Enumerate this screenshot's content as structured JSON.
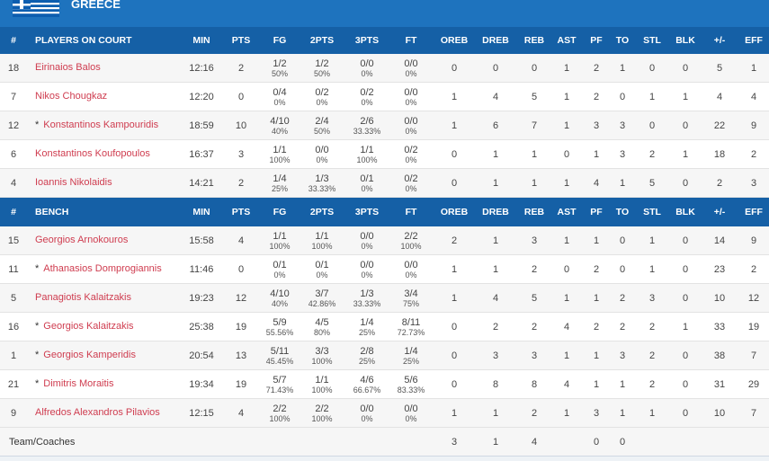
{
  "header": {
    "title": "GREECE"
  },
  "starters": {
    "columns": [
      "#",
      "PLAYERS ON COURT",
      "MIN",
      "PTS",
      "FG",
      "2PTS",
      "3PTS",
      "FT",
      "OREB",
      "DREB",
      "REB",
      "AST",
      "PF",
      "TO",
      "STL",
      "BLK",
      "+/-",
      "EFF"
    ],
    "rows": [
      {
        "no": 18,
        "name": "Eirinaios Balos",
        "min": "12:16",
        "pts": 2,
        "fg": "1/2",
        "fg_pct": "50%",
        "p2": "1/2",
        "p2_pct": "50%",
        "p3": "0/0",
        "p3_pct": "0%",
        "ft": "0/0",
        "ft_pct": "0%",
        "oreb": 0,
        "dreb": 0,
        "reb": 0,
        "ast": 1,
        "pf": 2,
        "to": 1,
        "stl": 0,
        "blk": 0,
        "pm": 5,
        "eff": 1
      },
      {
        "no": 7,
        "name": "Nikos Chougkaz",
        "min": "12:20",
        "pts": 0,
        "fg": "0/4",
        "fg_pct": "0%",
        "p2": "0/2",
        "p2_pct": "0%",
        "p3": "0/2",
        "p3_pct": "0%",
        "ft": "0/0",
        "ft_pct": "0%",
        "oreb": 1,
        "dreb": 4,
        "reb": 5,
        "ast": 1,
        "pf": 2,
        "to": 0,
        "stl": 1,
        "blk": 1,
        "pm": 4,
        "eff": 4
      },
      {
        "no": 12,
        "star": "*",
        "name": "Konstantinos Kampouridis",
        "min": "18:59",
        "pts": 10,
        "fg": "4/10",
        "fg_pct": "40%",
        "p2": "2/4",
        "p2_pct": "50%",
        "p3": "2/6",
        "p3_pct": "33.33%",
        "ft": "0/0",
        "ft_pct": "0%",
        "oreb": 1,
        "dreb": 6,
        "reb": 7,
        "ast": 1,
        "pf": 3,
        "to": 3,
        "stl": 0,
        "blk": 0,
        "pm": 22,
        "eff": 9
      },
      {
        "no": 6,
        "name": "Konstantinos Koufopoulos",
        "min": "16:37",
        "pts": 3,
        "fg": "1/1",
        "fg_pct": "100%",
        "p2": "0/0",
        "p2_pct": "0%",
        "p3": "1/1",
        "p3_pct": "100%",
        "ft": "0/2",
        "ft_pct": "0%",
        "oreb": 0,
        "dreb": 1,
        "reb": 1,
        "ast": 0,
        "pf": 1,
        "to": 3,
        "stl": 2,
        "blk": 1,
        "pm": 18,
        "eff": 2
      },
      {
        "no": 4,
        "name": "Ioannis Nikolaidis",
        "min": "14:21",
        "pts": 2,
        "fg": "1/4",
        "fg_pct": "25%",
        "p2": "1/3",
        "p2_pct": "33.33%",
        "p3": "0/1",
        "p3_pct": "0%",
        "ft": "0/2",
        "ft_pct": "0%",
        "oreb": 0,
        "dreb": 1,
        "reb": 1,
        "ast": 1,
        "pf": 4,
        "to": 1,
        "stl": 5,
        "blk": 0,
        "pm": 2,
        "eff": 3
      }
    ]
  },
  "bench": {
    "columns": [
      "#",
      "BENCH",
      "MIN",
      "PTS",
      "FG",
      "2PTS",
      "3PTS",
      "FT",
      "OREB",
      "DREB",
      "REB",
      "AST",
      "PF",
      "TO",
      "STL",
      "BLK",
      "+/-",
      "EFF"
    ],
    "rows": [
      {
        "no": 15,
        "name": "Georgios Arnokouros",
        "min": "15:58",
        "pts": 4,
        "fg": "1/1",
        "fg_pct": "100%",
        "p2": "1/1",
        "p2_pct": "100%",
        "p3": "0/0",
        "p3_pct": "0%",
        "ft": "2/2",
        "ft_pct": "100%",
        "oreb": 2,
        "dreb": 1,
        "reb": 3,
        "ast": 1,
        "pf": 1,
        "to": 0,
        "stl": 1,
        "blk": 0,
        "pm": 14,
        "eff": 9
      },
      {
        "no": 11,
        "star": "*",
        "name": "Athanasios Domprogiannis",
        "min": "11:46",
        "pts": 0,
        "fg": "0/1",
        "fg_pct": "0%",
        "p2": "0/1",
        "p2_pct": "0%",
        "p3": "0/0",
        "p3_pct": "0%",
        "ft": "0/0",
        "ft_pct": "0%",
        "oreb": 1,
        "dreb": 1,
        "reb": 2,
        "ast": 0,
        "pf": 2,
        "to": 0,
        "stl": 1,
        "blk": 0,
        "pm": 23,
        "eff": 2
      },
      {
        "no": 5,
        "name": "Panagiotis Kalaitzakis",
        "min": "19:23",
        "pts": 12,
        "fg": "4/10",
        "fg_pct": "40%",
        "p2": "3/7",
        "p2_pct": "42.86%",
        "p3": "1/3",
        "p3_pct": "33.33%",
        "ft": "3/4",
        "ft_pct": "75%",
        "oreb": 1,
        "dreb": 4,
        "reb": 5,
        "ast": 1,
        "pf": 1,
        "to": 2,
        "stl": 3,
        "blk": 0,
        "pm": 10,
        "eff": 12
      },
      {
        "no": 16,
        "star": "*",
        "name": "Georgios Kalaitzakis",
        "min": "25:38",
        "pts": 19,
        "fg": "5/9",
        "fg_pct": "55.56%",
        "p2": "4/5",
        "p2_pct": "80%",
        "p3": "1/4",
        "p3_pct": "25%",
        "ft": "8/11",
        "ft_pct": "72.73%",
        "oreb": 0,
        "dreb": 2,
        "reb": 2,
        "ast": 4,
        "pf": 2,
        "to": 2,
        "stl": 2,
        "blk": 1,
        "pm": 33,
        "eff": 19
      },
      {
        "no": 1,
        "star": "*",
        "name": "Georgios Kamperidis",
        "min": "20:54",
        "pts": 13,
        "fg": "5/11",
        "fg_pct": "45.45%",
        "p2": "3/3",
        "p2_pct": "100%",
        "p3": "2/8",
        "p3_pct": "25%",
        "ft": "1/4",
        "ft_pct": "25%",
        "oreb": 0,
        "dreb": 3,
        "reb": 3,
        "ast": 1,
        "pf": 1,
        "to": 3,
        "stl": 2,
        "blk": 0,
        "pm": 38,
        "eff": 7
      },
      {
        "no": 21,
        "star": "*",
        "name": "Dimitris Moraitis",
        "min": "19:34",
        "pts": 19,
        "fg": "5/7",
        "fg_pct": "71.43%",
        "p2": "1/1",
        "p2_pct": "100%",
        "p3": "4/6",
        "p3_pct": "66.67%",
        "ft": "5/6",
        "ft_pct": "83.33%",
        "oreb": 0,
        "dreb": 8,
        "reb": 8,
        "ast": 4,
        "pf": 1,
        "to": 1,
        "stl": 2,
        "blk": 0,
        "pm": 31,
        "eff": 29
      },
      {
        "no": 9,
        "name": "Alfredos Alexandros Pilavios",
        "min": "12:15",
        "pts": 4,
        "fg": "2/2",
        "fg_pct": "100%",
        "p2": "2/2",
        "p2_pct": "100%",
        "p3": "0/0",
        "p3_pct": "0%",
        "ft": "0/0",
        "ft_pct": "0%",
        "oreb": 1,
        "dreb": 1,
        "reb": 2,
        "ast": 1,
        "pf": 3,
        "to": 1,
        "stl": 1,
        "blk": 0,
        "pm": 10,
        "eff": 7
      }
    ]
  },
  "team": {
    "name": "Team/Coaches",
    "oreb": 3,
    "dreb": 1,
    "reb": 4,
    "pf": 0,
    "to": 0
  }
}
